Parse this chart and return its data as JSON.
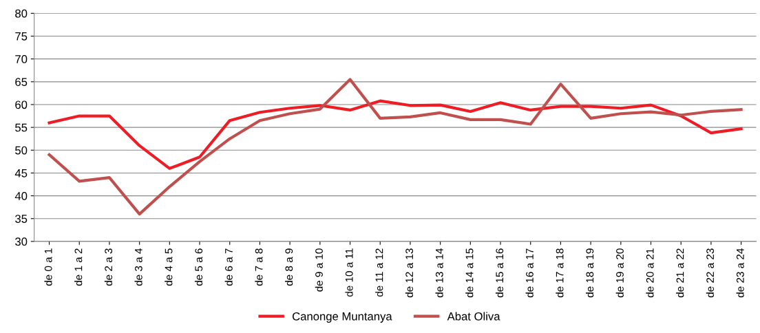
{
  "chart_data": {
    "type": "line",
    "categories": [
      "de 0 a 1",
      "de 1 a 2",
      "de 2 a 3",
      "de 3 a 4",
      "de 4 a 5",
      "de 5 a 6",
      "de 6 a 7",
      "de 7 a 8",
      "de 8 a 9",
      "de 9 a 10",
      "de 10 a 11",
      "de 11 a 12",
      "de 12 a 13",
      "de 13 a 14",
      "de 14 a 15",
      "de 15 a 16",
      "de 16 a 17",
      "de 17 a 18",
      "de 18 a 19",
      "de 19 a 20",
      "de 20 a 21",
      "de 21 a 22",
      "de 22 a 23",
      "de 23 a 24"
    ],
    "series": [
      {
        "name": "Canonge Muntanya",
        "color": "#ee1c25",
        "values": [
          56,
          57.5,
          57.5,
          51,
          46,
          48.5,
          56.5,
          58.3,
          59.2,
          59.8,
          58.8,
          60.8,
          59.8,
          59.9,
          58.5,
          60.4,
          58.8,
          59.6,
          59.6,
          59.2,
          59.9,
          57.5,
          53.8,
          54.7
        ]
      },
      {
        "name": "Abat Oliva",
        "color": "#c0504d",
        "values": [
          49,
          43.2,
          44,
          36,
          42,
          47.5,
          52.5,
          56.5,
          58,
          59,
          65.5,
          57,
          57.3,
          58.2,
          56.7,
          56.7,
          55.7,
          64.5,
          57,
          58,
          58.4,
          57.7,
          58.5,
          58.9
        ]
      }
    ],
    "ylim": [
      30,
      80
    ],
    "yticks": [
      30,
      35,
      40,
      45,
      50,
      55,
      60,
      65,
      70,
      75,
      80
    ],
    "grid": "y",
    "legend": "bottom",
    "marker": "none",
    "line_style": "solid"
  }
}
